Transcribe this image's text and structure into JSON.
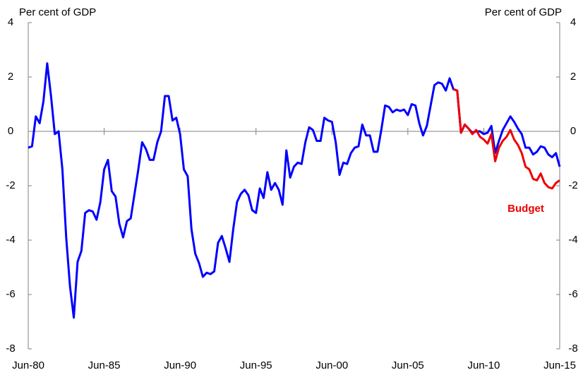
{
  "chart_data": {
    "type": "line",
    "y_label": "Per cent of GDP",
    "y2_label": "Per cent of GDP",
    "categories": [
      "Jun-80",
      null,
      null,
      null,
      null,
      null,
      null,
      null,
      null,
      null,
      null,
      null,
      null,
      null,
      null,
      null,
      null,
      null,
      null,
      null,
      "Jun-85",
      null,
      null,
      null,
      null,
      null,
      null,
      null,
      null,
      null,
      null,
      null,
      null,
      null,
      null,
      null,
      null,
      null,
      null,
      null,
      "Jun-90",
      null,
      null,
      null,
      null,
      null,
      null,
      null,
      null,
      null,
      null,
      null,
      null,
      null,
      null,
      null,
      null,
      null,
      null,
      null,
      "Jun-95",
      null,
      null,
      null,
      null,
      null,
      null,
      null,
      null,
      null,
      null,
      null,
      null,
      null,
      null,
      null,
      null,
      null,
      null,
      null,
      "Jun-00",
      null,
      null,
      null,
      null,
      null,
      null,
      null,
      null,
      null,
      null,
      null,
      null,
      null,
      null,
      null,
      null,
      null,
      null,
      null,
      "Jun-05",
      null,
      null,
      null,
      null,
      null,
      null,
      null,
      null,
      null,
      null,
      null,
      null,
      null,
      null,
      null,
      null,
      null,
      null,
      null,
      "Jun-10",
      null,
      null,
      null,
      null,
      null,
      null,
      null,
      null,
      null,
      null,
      null,
      null,
      null,
      null,
      null,
      null,
      null,
      null,
      null,
      "Jun-15"
    ],
    "series": [
      {
        "color": "#0000ff",
        "values": [
          -0.6,
          -0.55,
          0.55,
          0.3,
          1.1,
          2.5,
          1.3,
          -0.1,
          0.0,
          -1.4,
          -3.9,
          -5.7,
          -6.85,
          -4.8,
          -4.4,
          -3.0,
          -2.9,
          -2.95,
          -3.25,
          -2.6,
          -1.4,
          -1.05,
          -2.2,
          -2.4,
          -3.4,
          -3.9,
          -3.3,
          -3.2,
          -2.3,
          -1.4,
          -0.4,
          -0.65,
          -1.05,
          -1.05,
          -0.4,
          0.0,
          1.3,
          1.3,
          0.4,
          0.5,
          -0.1,
          -1.4,
          -1.65,
          -3.6,
          -4.5,
          -4.85,
          -5.35,
          -5.2,
          -5.25,
          -5.15,
          -4.1,
          -3.85,
          -4.3,
          -4.8,
          -3.6,
          -2.6,
          -2.3,
          -2.15,
          -2.35,
          -2.9,
          -3.0,
          -2.1,
          -2.45,
          -1.5,
          -2.15,
          -1.9,
          -2.15,
          -2.7,
          -0.7,
          -1.7,
          -1.3,
          -1.15,
          -1.2,
          -0.4,
          0.15,
          0.05,
          -0.35,
          -0.35,
          0.5,
          0.4,
          0.35,
          -0.4,
          -1.6,
          -1.15,
          -1.2,
          -0.8,
          -0.6,
          -0.55,
          0.25,
          -0.15,
          -0.15,
          -0.75,
          -0.75,
          0.05,
          0.95,
          0.9,
          0.7,
          0.8,
          0.75,
          0.8,
          0.6,
          1.0,
          0.95,
          0.3,
          -0.15,
          0.2,
          0.95,
          1.7,
          1.8,
          1.75,
          1.5,
          1.95,
          1.55,
          1.5,
          -0.05,
          0.25,
          0.1,
          -0.05,
          0.0,
          0.0,
          -0.1,
          -0.05,
          0.2,
          -0.8,
          -0.35,
          0.05,
          0.3,
          0.55,
          0.35,
          0.1,
          -0.1,
          -0.6,
          -0.6,
          -0.85,
          -0.75,
          -0.55,
          -0.6,
          -0.85,
          -0.95,
          -0.8,
          -1.3
        ]
      },
      {
        "name": "Budget",
        "color": "#ee0000",
        "values": [
          null,
          null,
          null,
          null,
          null,
          null,
          null,
          null,
          null,
          null,
          null,
          null,
          null,
          null,
          null,
          null,
          null,
          null,
          null,
          null,
          null,
          null,
          null,
          null,
          null,
          null,
          null,
          null,
          null,
          null,
          null,
          null,
          null,
          null,
          null,
          null,
          null,
          null,
          null,
          null,
          null,
          null,
          null,
          null,
          null,
          null,
          null,
          null,
          null,
          null,
          null,
          null,
          null,
          null,
          null,
          null,
          null,
          null,
          null,
          null,
          null,
          null,
          null,
          null,
          null,
          null,
          null,
          null,
          null,
          null,
          null,
          null,
          null,
          null,
          null,
          null,
          null,
          null,
          null,
          null,
          null,
          null,
          null,
          null,
          null,
          null,
          null,
          null,
          null,
          null,
          null,
          null,
          null,
          null,
          null,
          null,
          null,
          null,
          null,
          null,
          null,
          null,
          null,
          null,
          null,
          null,
          null,
          null,
          null,
          null,
          null,
          null,
          1.55,
          1.5,
          -0.05,
          0.25,
          0.1,
          -0.1,
          0.05,
          -0.2,
          -0.3,
          -0.45,
          -0.1,
          -1.1,
          -0.6,
          -0.35,
          -0.2,
          0.05,
          -0.3,
          -0.5,
          -0.8,
          -1.3,
          -1.4,
          -1.75,
          -1.8,
          -1.55,
          -1.9,
          -2.05,
          -2.1,
          -1.9,
          -1.8
        ]
      }
    ],
    "ylim": [
      -8,
      4
    ],
    "yticks": [
      -8,
      -6,
      -4,
      -2,
      0,
      2,
      4
    ],
    "y2lim": [
      -8,
      4
    ],
    "y2ticks": [
      -8,
      -6,
      -4,
      -2,
      0,
      2,
      4
    ],
    "zero_line": true
  }
}
